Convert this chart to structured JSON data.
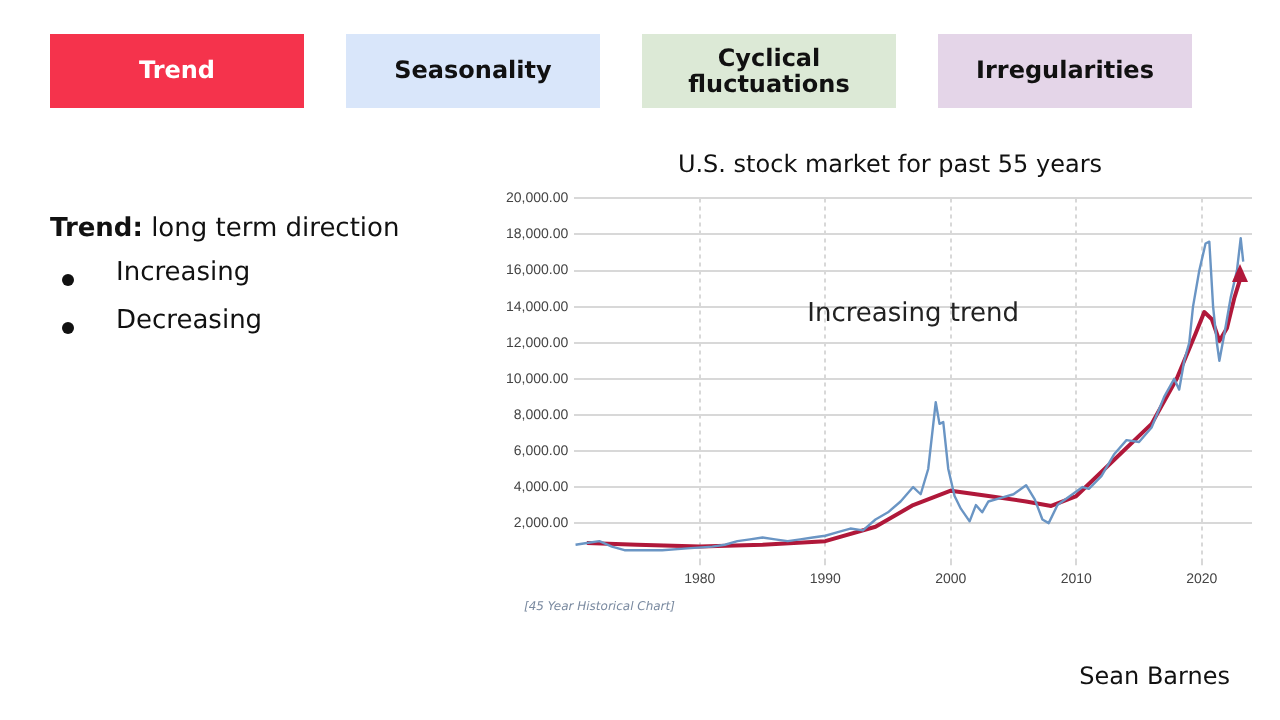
{
  "chart_data": {
    "type": "line",
    "title": "U.S. stock market for past 55 years",
    "annotations": [
      "Trend",
      "Seasonality",
      "Cyclical fluctuations",
      "Irregularities",
      "Trend: long term direction",
      "Increasing",
      "Decreasing",
      "Increasing trend",
      "[45 Year Historical Chart]",
      "Sean Barnes"
    ],
    "xlim": [
      1970,
      2024
    ],
    "xticks": [
      1980,
      1990,
      2000,
      2010,
      2020
    ],
    "ylim": [
      0,
      20000
    ],
    "yticks": [
      {
        "value": 2000,
        "label": "2,000.00"
      },
      {
        "value": 4000,
        "label": "4,000.00"
      },
      {
        "value": 6000,
        "label": "6,000.00"
      },
      {
        "value": 8000,
        "label": "8,000.00"
      },
      {
        "value": 10000,
        "label": "10,000.00"
      },
      {
        "value": 12000,
        "label": "12,000.00"
      },
      {
        "value": 14000,
        "label": "14,000.00"
      },
      {
        "value": 16000,
        "label": "16,000.00"
      },
      {
        "value": 18000,
        "label": "18,000.00"
      },
      {
        "value": 20000,
        "label": "20,000.00"
      }
    ],
    "grid": true,
    "legend": false,
    "marker": "none",
    "series": [
      {
        "color": "#6a95c4",
        "x": [
          1970.1,
          1971,
          1972,
          1973,
          1974,
          1975,
          1977,
          1979,
          1981,
          1982,
          1983,
          1984,
          1985,
          1986,
          1987,
          1988,
          1989,
          1990,
          1991,
          1992,
          1993,
          1994,
          1995,
          1996,
          1997,
          1997.6,
          1998.2,
          1998.8,
          1999.1,
          1999.4,
          1999.8,
          2000.3,
          2000.8,
          2001.5,
          2002,
          2002.5,
          2003,
          2004,
          2005,
          2006,
          2006.7,
          2007.3,
          2007.8,
          2008.5,
          2009.5,
          2010.5,
          2011,
          2012,
          2013,
          2014,
          2015,
          2016,
          2017,
          2017.8,
          2018.2,
          2018.6,
          2019,
          2019.3,
          2019.8,
          2020.3,
          2020.6,
          2020.9,
          2021.2,
          2021.4,
          2021.8,
          2022.3,
          2022.8,
          2023.1,
          2023.3
        ],
        "values": [
          800,
          900,
          1000,
          700,
          500,
          500,
          500,
          600,
          700,
          800,
          1000,
          1100,
          1200,
          1100,
          1000,
          1100,
          1200,
          1300,
          1500,
          1700,
          1600,
          2200,
          2600,
          3200,
          4000,
          3600,
          5000,
          8700,
          7500,
          7600,
          5000,
          3500,
          2800,
          2100,
          3000,
          2600,
          3200,
          3400,
          3600,
          4100,
          3300,
          2200,
          2000,
          3000,
          3500,
          4000,
          3900,
          4600,
          5800,
          6600,
          6500,
          7300,
          9000,
          10000,
          9400,
          11000,
          12000,
          14000,
          16000,
          17500,
          17600,
          14000,
          12000,
          11000,
          12500,
          14500,
          16000,
          17800,
          16500
        ]
      },
      {
        "type": "line",
        "color": "#b0183a",
        "x": [
          1971,
          1975,
          1980,
          1985,
          1990,
          1994,
          1997,
          2000,
          2003,
          2006,
          2008,
          2010,
          2013,
          2016,
          2018,
          2019.5,
          2020.2,
          2020.8,
          2021.4,
          2022,
          2022.6,
          2023
        ],
        "values": [
          900,
          800,
          700,
          800,
          1000,
          1800,
          3000,
          3800,
          3500,
          3200,
          2950,
          3500,
          5500,
          7500,
          10000,
          12500,
          13700,
          13300,
          12100,
          12800,
          14500,
          15400
        ]
      }
    ]
  }
}
